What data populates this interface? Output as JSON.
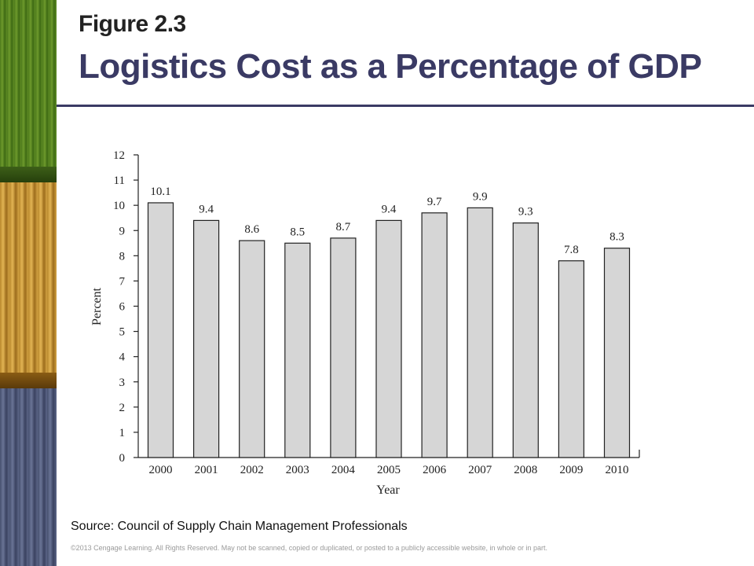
{
  "slide": {
    "figure_label": "Figure 2.3",
    "title": "Logistics Cost as a Percentage of GDP",
    "source": "Source: Council of Supply Chain Management Professionals",
    "copyright": "©2013 Cengage Learning. All Rights Reserved. May not be scanned, copied or duplicated, or posted to a publicly accessible website, in whole or in part."
  },
  "chart_data": {
    "type": "bar",
    "categories": [
      "2000",
      "2001",
      "2002",
      "2003",
      "2004",
      "2005",
      "2006",
      "2007",
      "2008",
      "2009",
      "2010"
    ],
    "values": [
      10.1,
      9.4,
      8.6,
      8.5,
      8.7,
      9.4,
      9.7,
      9.9,
      9.3,
      7.8,
      8.3
    ],
    "data_labels": [
      "10.1",
      "9.4",
      "8.6",
      "8.5",
      "8.7",
      "9.4",
      "9.7",
      "9.9",
      "9.3",
      "7.8",
      "8.3"
    ],
    "xlabel": "Year",
    "ylabel": "Percent",
    "ylim": [
      0,
      12
    ],
    "yticks": [
      0,
      1,
      2,
      3,
      4,
      5,
      6,
      7,
      8,
      9,
      10,
      11,
      12
    ],
    "grid": false,
    "legend": "none",
    "bar_color": "#d6d6d6",
    "bar_edge_color": "#222222"
  }
}
